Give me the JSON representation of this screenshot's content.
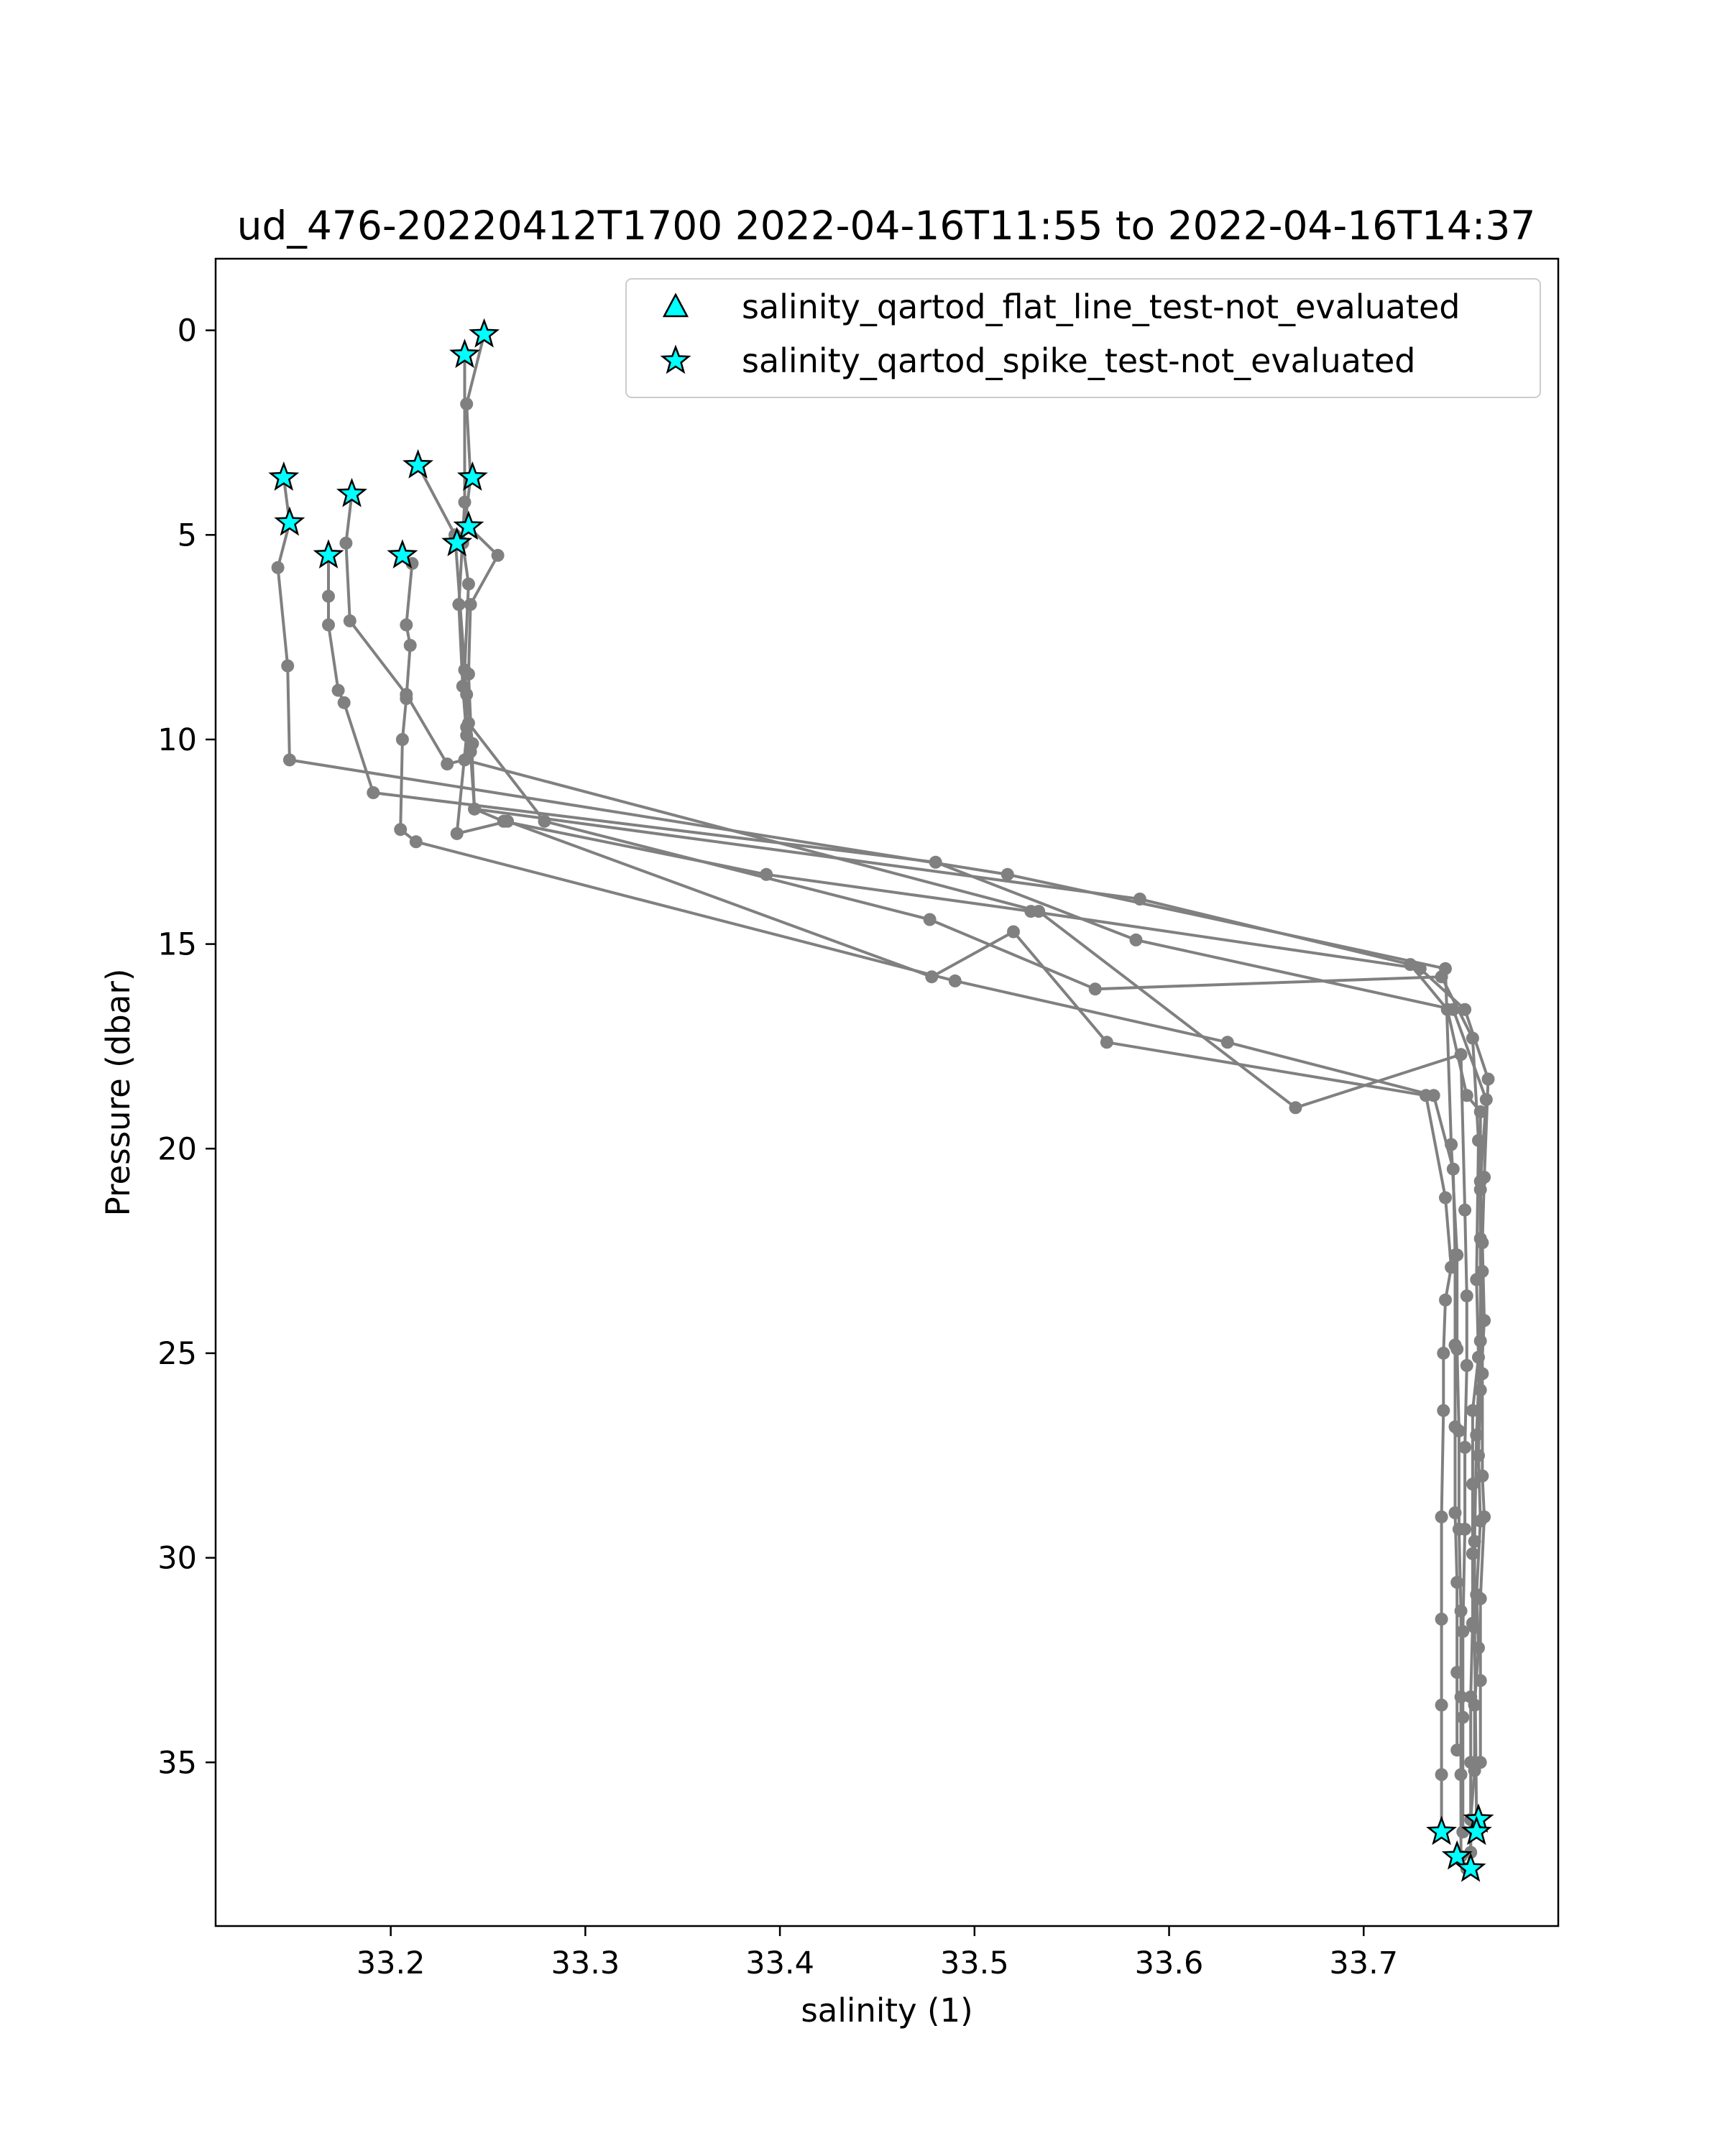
{
  "chart_data": {
    "type": "line",
    "title": "ud_476-20220412T1700 2022-04-16T11:55 to 2022-04-16T14:37",
    "xlabel": "salinity (1)",
    "ylabel": "Pressure (dbar)",
    "xlim": [
      33.11,
      33.8
    ],
    "ylim": [
      39.0,
      -1.75
    ],
    "y_inverted": true,
    "grid": false,
    "legend_position": "upper-right",
    "x_ticks": [
      "33.2",
      "33.3",
      "33.4",
      "33.5",
      "33.6",
      "33.7"
    ],
    "y_ticks": [
      "0",
      "5",
      "10",
      "15",
      "20",
      "25",
      "30",
      "35"
    ],
    "line_color": "#808080",
    "marker_color": "#00ffff",
    "marker_edge_color": "#000000",
    "series": [
      {
        "x": [
          33.248,
          33.239,
          33.241,
          33.237,
          33.24,
          33.238,
          33.239,
          33.241,
          33.243,
          33.258,
          33.393,
          33.529,
          33.729,
          33.752,
          33.764,
          33.762,
          33.761,
          33.762,
          33.76,
          33.759,
          33.76,
          33.758,
          33.759,
          33.757,
          33.757,
          33.755,
          33.755,
          33.753
        ],
        "y": [
          0.1,
          1.8,
          3.6,
          5.2,
          6.2,
          8.3,
          9.7,
          10.3,
          11.7,
          12.0,
          13.3,
          14.2,
          15.6,
          16.6,
          18.3,
          20.7,
          22.3,
          24.2,
          25.9,
          27.5,
          29.1,
          30.9,
          32.2,
          33.6,
          35.2,
          36.4,
          37.2,
          37.6
        ]
      },
      {
        "x": [
          33.238,
          33.238,
          33.235,
          33.237,
          33.239,
          33.234,
          33.26,
          33.478,
          33.52,
          33.568,
          33.732,
          33.742,
          33.745,
          33.742,
          33.741,
          33.741,
          33.74,
          33.74,
          33.74,
          33.74,
          33.74
        ],
        "y": [
          0.6,
          4.2,
          6.7,
          8.7,
          9.9,
          12.3,
          12.0,
          15.8,
          14.7,
          17.4,
          18.7,
          21.2,
          22.9,
          23.7,
          25.0,
          26.4,
          29.0,
          31.5,
          33.6,
          35.3,
          36.7
        ]
      },
      {
        "x": [
          33.214,
          33.233,
          33.239,
          33.242,
          33.24,
          33.279,
          33.477,
          33.562,
          33.74,
          33.756,
          33.759,
          33.758,
          33.759,
          33.756,
          33.756,
          33.756,
          33.756,
          33.755,
          33.755,
          33.755
        ],
        "y": [
          3.3,
          5.0,
          8.9,
          10.1,
          9.6,
          12.0,
          14.4,
          16.1,
          15.8,
          17.3,
          19.8,
          23.2,
          25.1,
          26.4,
          28.2,
          29.9,
          31.6,
          33.4,
          35.0,
          37.6
        ]
      },
      {
        "x": [
          33.145,
          33.148,
          33.142,
          33.147,
          33.148,
          33.517,
          33.742,
          33.745,
          33.748,
          33.748,
          33.749,
          33.749,
          33.75,
          33.75,
          33.75,
          33.75
        ],
        "y": [
          3.6,
          4.7,
          5.8,
          8.2,
          10.5,
          13.3,
          15.6,
          19.9,
          22.6,
          24.9,
          26.9,
          29.3,
          31.3,
          33.4,
          35.3,
          37.3
        ]
      },
      {
        "x": [
          33.168,
          33.168,
          33.168,
          33.173,
          33.176,
          33.191,
          33.48,
          33.583,
          33.746,
          33.763,
          33.76,
          33.76,
          33.76,
          33.758,
          33.757,
          33.757,
          33.758
        ],
        "y": [
          5.5,
          6.5,
          7.2,
          8.8,
          9.1,
          11.3,
          13.0,
          14.9,
          16.6,
          18.8,
          20.8,
          22.2,
          24.7,
          27.0,
          29.6,
          31.7,
          36.4
        ]
      },
      {
        "x": [
          33.18,
          33.177,
          33.179,
          33.208,
          33.229,
          33.238,
          33.533,
          33.665,
          33.75,
          33.752,
          33.753,
          33.753,
          33.752,
          33.752,
          33.751,
          33.751,
          33.751
        ],
        "y": [
          4.0,
          5.2,
          7.1,
          8.9,
          10.6,
          10.5,
          14.2,
          19.0,
          17.7,
          21.5,
          23.6,
          25.3,
          27.3,
          29.3,
          31.8,
          33.9,
          36.7
        ]
      },
      {
        "x": [
          33.206,
          33.211,
          33.208,
          33.21,
          33.208,
          33.206,
          33.205,
          33.213,
          33.49,
          33.63,
          33.736,
          33.746,
          33.747,
          33.747,
          33.747,
          33.747,
          33.748,
          33.748,
          33.748
        ],
        "y": [
          5.5,
          5.7,
          7.2,
          7.7,
          9.0,
          10.0,
          12.2,
          12.5,
          15.9,
          17.4,
          18.7,
          20.5,
          22.6,
          24.8,
          26.8,
          28.9,
          30.6,
          32.8,
          34.7
        ]
      },
      {
        "x": [
          33.24,
          33.255,
          33.241,
          33.24,
          33.243,
          33.585,
          33.724,
          33.743,
          33.753,
          33.76,
          33.76,
          33.761,
          33.761,
          33.761,
          33.762,
          33.76,
          33.76,
          33.76
        ],
        "y": [
          4.8,
          5.5,
          6.7,
          8.4,
          11.7,
          13.9,
          15.5,
          16.6,
          18.7,
          19.1,
          21.0,
          23.0,
          25.5,
          28.0,
          29.0,
          31.0,
          33.0,
          35.0
        ]
      }
    ],
    "flat_line_test_not_evaluated": {
      "label": "salinity_qartod_flat_line_test-not_evaluated",
      "marker": "triangle",
      "x": [],
      "y": []
    },
    "spike_test_not_evaluated": {
      "label": "salinity_qartod_spike_test-not_evaluated",
      "marker": "star",
      "x": [
        33.248,
        33.238,
        33.214,
        33.242,
        33.145,
        33.148,
        33.18,
        33.168,
        33.206,
        33.24,
        33.234,
        33.759,
        33.758,
        33.74,
        33.748,
        33.755
      ],
      "y": [
        0.1,
        0.6,
        3.3,
        3.6,
        3.6,
        4.7,
        4.0,
        5.5,
        5.5,
        4.8,
        5.2,
        36.4,
        36.7,
        36.7,
        37.3,
        37.6
      ]
    }
  }
}
